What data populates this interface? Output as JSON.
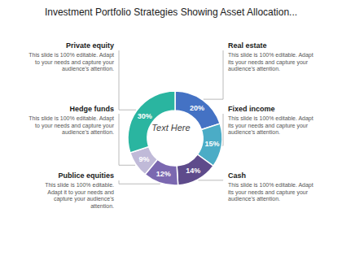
{
  "chart_data": {
    "type": "donut",
    "title": "Investment Portfolio Strategies Showing Asset Allocation...",
    "categories": [
      "Real estate",
      "Fixed income",
      "Cash",
      "Publice equities",
      "Hedge funds",
      "Private equity"
    ],
    "values": [
      20,
      15,
      14,
      12,
      9,
      30
    ],
    "value_labels": [
      "20%",
      "15%",
      "14%",
      "12%",
      "9%",
      "30%"
    ],
    "colors": [
      "#4472C4",
      "#4BACC6",
      "#5E4B8B",
      "#7B68B0",
      "#C0BAD8",
      "#2AB5A0"
    ],
    "data_labels": true,
    "annotations": [
      {
        "text": "Text Here"
      },
      {
        "label": "Real estate",
        "text": "This slide is 100% editable. Adapt\nits your needs and capture your\naudience's attention."
      },
      {
        "label": "Fixed income",
        "text": "This slide is 100% editable. Adapt\nits your needs and capture your\naudience's attention."
      },
      {
        "label": "Cash",
        "text": "This slide is 100% editable. Adapt\nits your needs and capture your\naudience's attention."
      },
      {
        "label": "Private equity",
        "text": "This slide is 100% editable. Adapt\nto your needs and capture your\naudience's attention."
      },
      {
        "label": "Hedge funds",
        "text": "This slide is 100% editable. Adapt\nto your needs and capture your\naudience's attention."
      },
      {
        "label": "Publice equities",
        "text": "This slide is 100% editable.\nAdapt it to your needs and\ncapture your audience's\nattention."
      }
    ]
  }
}
